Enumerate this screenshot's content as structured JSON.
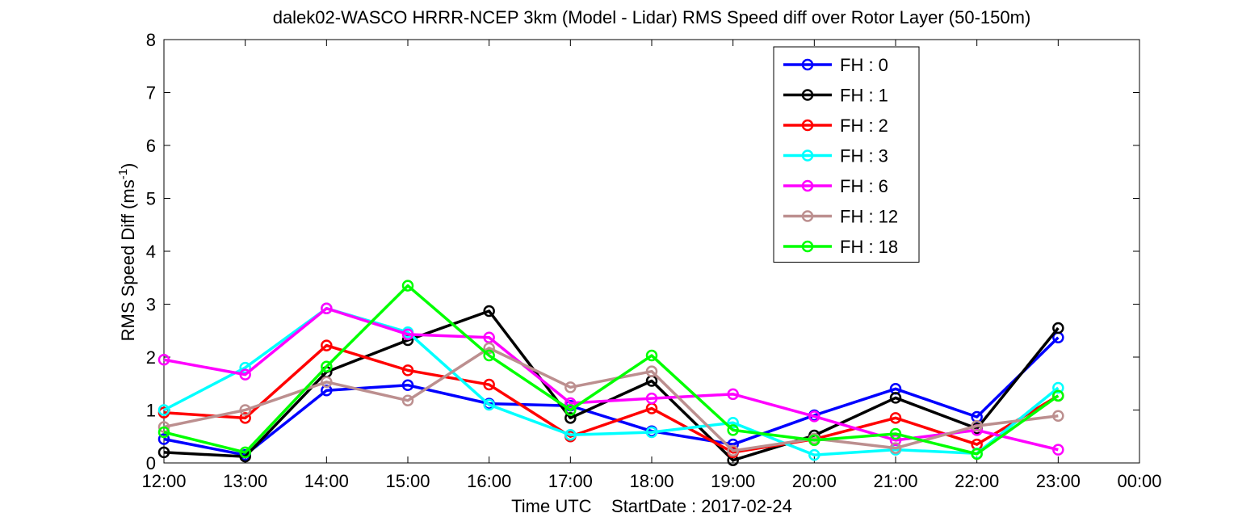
{
  "chart_data": {
    "type": "line",
    "title": "dalek02-WASCO HRRR-NCEP 3km (Model - Lidar) RMS Speed diff over Rotor Layer (50-150m)",
    "xlabel": "Time UTC    StartDate : 2017-02-24",
    "ylabel_main": "RMS Speed Diff (ms",
    "ylabel_sup": "-1",
    "ylabel_close": ")",
    "x_tick_labels": [
      "12:00",
      "13:00",
      "14:00",
      "15:00",
      "16:00",
      "17:00",
      "18:00",
      "19:00",
      "20:00",
      "21:00",
      "22:00",
      "23:00",
      "00:00"
    ],
    "y_tick_labels": [
      "0",
      "1",
      "2",
      "3",
      "4",
      "5",
      "6",
      "7",
      "8"
    ],
    "xlim": [
      0,
      12
    ],
    "ylim": [
      0,
      8
    ],
    "legend_position": "top-right",
    "series": [
      {
        "name": "FH : 0",
        "color": "#0000ff",
        "values": [
          0.45,
          0.15,
          1.37,
          1.47,
          1.12,
          1.08,
          0.6,
          0.35,
          0.9,
          1.4,
          0.87,
          2.37
        ]
      },
      {
        "name": "FH : 1",
        "color": "#000000",
        "values": [
          0.2,
          0.12,
          1.72,
          2.32,
          2.87,
          0.85,
          1.55,
          0.05,
          0.52,
          1.23,
          0.65,
          2.55
        ]
      },
      {
        "name": "FH : 2",
        "color": "#ff0000",
        "values": [
          0.95,
          0.85,
          2.22,
          1.75,
          1.48,
          0.5,
          1.03,
          0.2,
          0.45,
          0.85,
          0.35,
          1.27
        ]
      },
      {
        "name": "FH : 3",
        "color": "#00ffff",
        "values": [
          1.0,
          1.8,
          2.92,
          2.47,
          1.1,
          0.53,
          0.58,
          0.76,
          0.15,
          0.25,
          0.18,
          1.42
        ]
      },
      {
        "name": "FH : 6",
        "color": "#ff00ff",
        "values": [
          1.95,
          1.67,
          2.92,
          2.43,
          2.37,
          1.13,
          1.22,
          1.3,
          0.88,
          0.43,
          0.62,
          0.25
        ]
      },
      {
        "name": "FH : 12",
        "color": "#bc8f8f",
        "values": [
          0.68,
          1.0,
          1.53,
          1.18,
          2.17,
          1.43,
          1.73,
          0.23,
          0.46,
          0.28,
          0.7,
          0.89
        ]
      },
      {
        "name": "FH : 18",
        "color": "#00ff00",
        "values": [
          0.58,
          0.2,
          1.82,
          3.35,
          2.03,
          1.0,
          2.03,
          0.62,
          0.43,
          0.55,
          0.17,
          1.27
        ]
      }
    ]
  }
}
